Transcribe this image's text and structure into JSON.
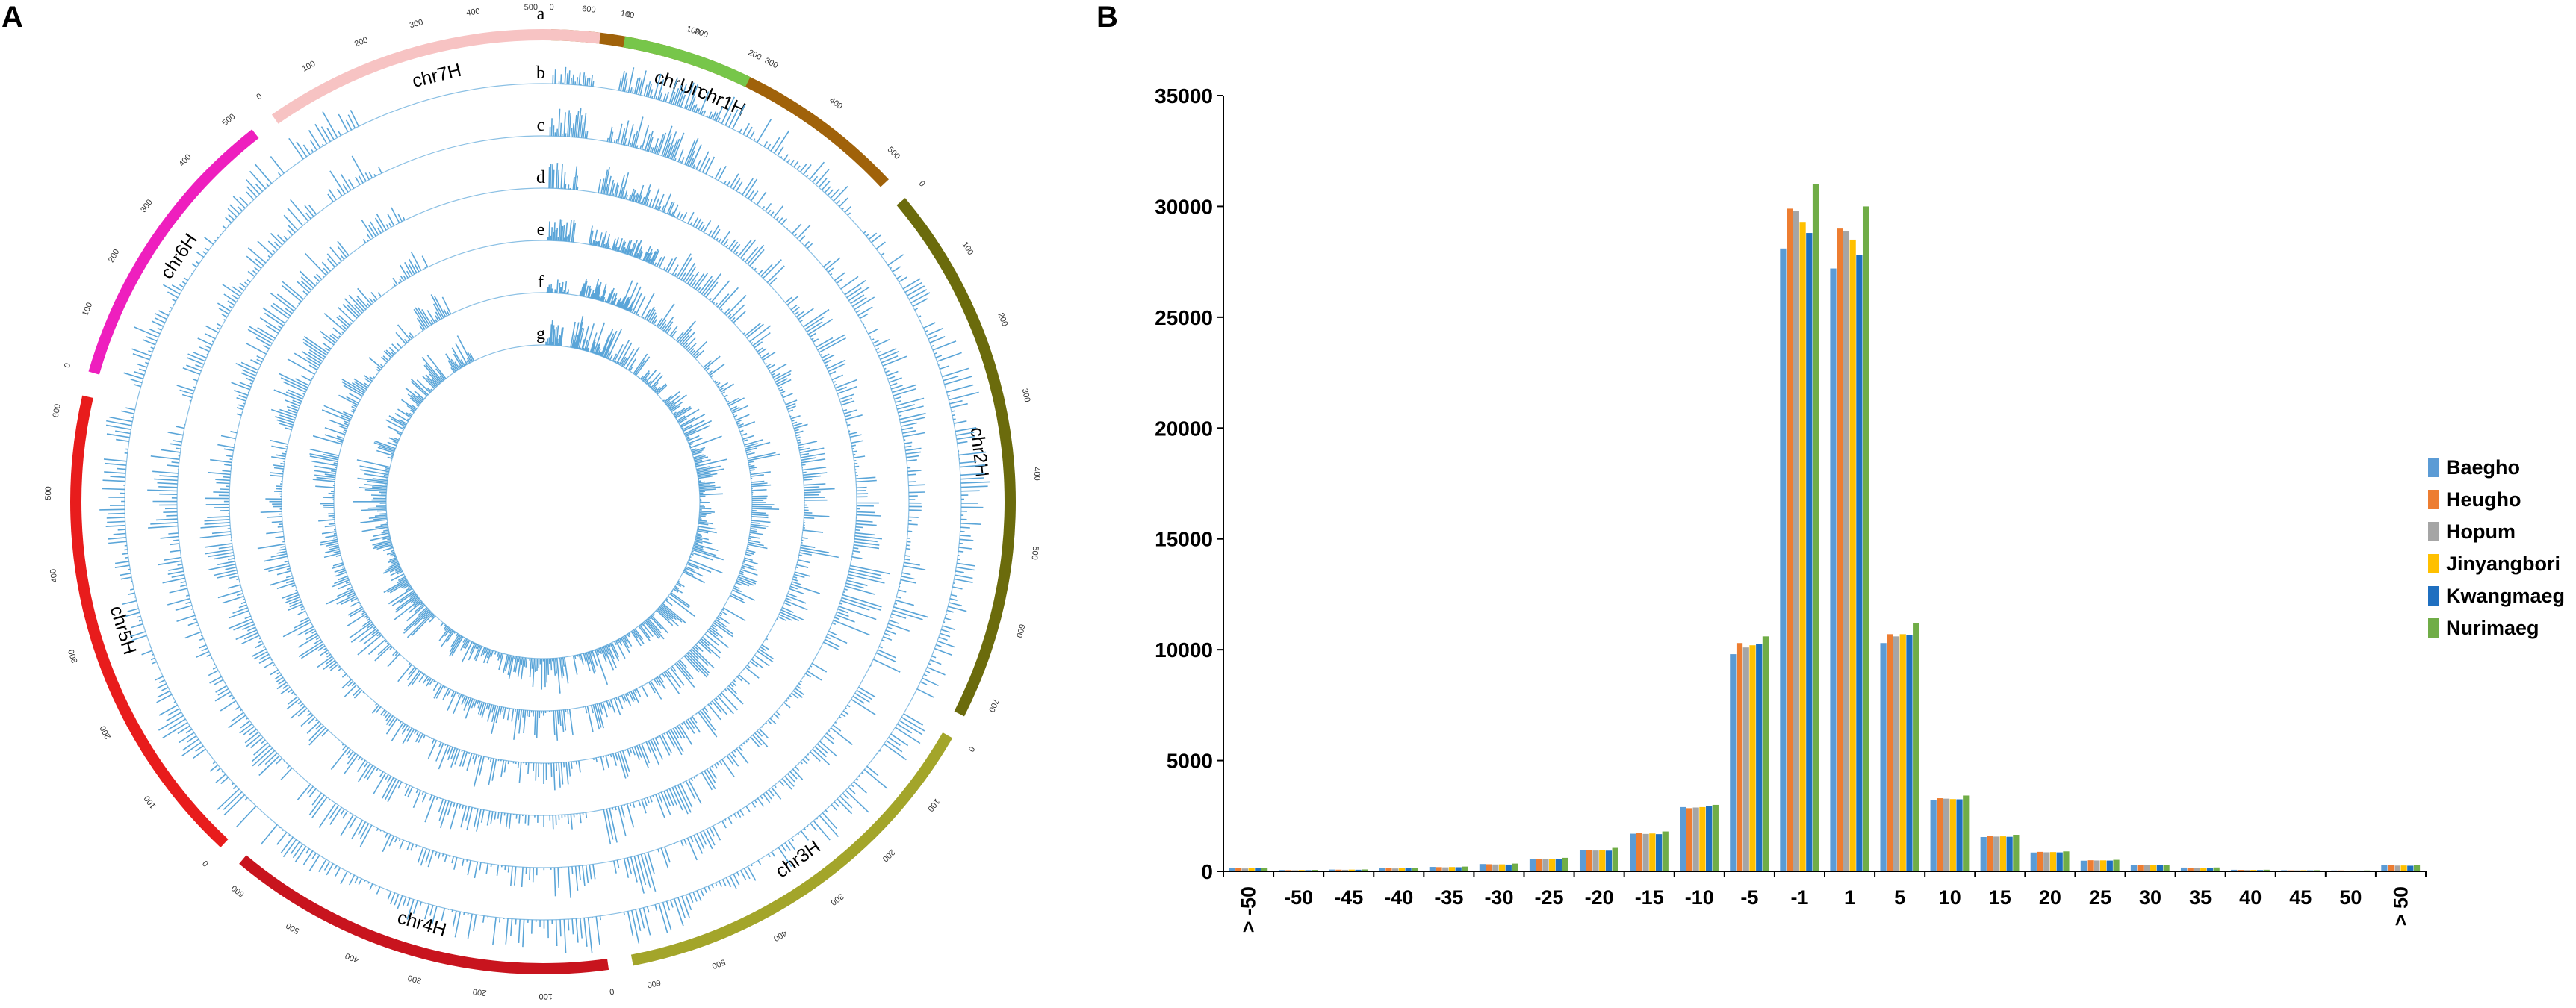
{
  "panels": {
    "a_label": "A",
    "b_label": "B"
  },
  "circos": {
    "chromosomes": [
      {
        "name": "chr1H",
        "color": "#a0620a",
        "start_deg": 1,
        "end_deg": 47,
        "ticks": [
          "0",
          "100",
          "200",
          "300",
          "400",
          "500"
        ]
      },
      {
        "name": "chr2H",
        "color": "#6b6b0c",
        "start_deg": 50,
        "end_deg": 117,
        "ticks": [
          "0",
          "100",
          "200",
          "300",
          "400",
          "500",
          "600",
          "700"
        ]
      },
      {
        "name": "chr3H",
        "color": "#a3a52a",
        "start_deg": 120,
        "end_deg": 169,
        "ticks": [
          "0",
          "100",
          "200",
          "300",
          "400",
          "500",
          "600"
        ]
      },
      {
        "name": "chr4H",
        "color": "#c8141e",
        "start_deg": 172,
        "end_deg": 220,
        "ticks": [
          "0",
          "100",
          "200",
          "300",
          "400",
          "500",
          "600"
        ]
      },
      {
        "name": "chr5H",
        "color": "#e81c1c",
        "start_deg": 223,
        "end_deg": 283,
        "ticks": [
          "0",
          "100",
          "200",
          "300",
          "400",
          "500",
          "600"
        ]
      },
      {
        "name": "chr6H",
        "color": "#ee1fbe",
        "start_deg": 286,
        "end_deg": 322,
        "ticks": [
          "0",
          "100",
          "200",
          "300",
          "400",
          "500"
        ]
      },
      {
        "name": "chr7H",
        "color": "#f7c3c3",
        "start_deg": 325,
        "end_deg": 367,
        "ticks": [
          "0",
          "100",
          "200",
          "300",
          "400",
          "500",
          "600"
        ]
      },
      {
        "name": "chrUn",
        "color": "#77c64a",
        "start_deg": 370,
        "end_deg": 386,
        "ticks": [
          "0",
          "100",
          "200"
        ]
      }
    ],
    "track_labels": [
      "a",
      "b",
      "c",
      "d",
      "e",
      "f",
      "g"
    ],
    "track_color": "#5aa5d8"
  },
  "chart_data": {
    "type": "bar",
    "categories": [
      "> -50",
      "-50",
      "-45",
      "-40",
      "-35",
      "-30",
      "-25",
      "-20",
      "-15",
      "-10",
      "-5",
      "-1",
      "1",
      "5",
      "10",
      "15",
      "20",
      "25",
      "30",
      "35",
      "40",
      "45",
      "50",
      "> 50"
    ],
    "ylim": [
      0,
      35000
    ],
    "yticks": [
      0,
      5000,
      10000,
      15000,
      20000,
      25000,
      30000,
      35000
    ],
    "legend_position": "right",
    "series": [
      {
        "name": "Baegho",
        "color": "#5b9bd5",
        "values": [
          150,
          60,
          80,
          150,
          200,
          330,
          560,
          960,
          1700,
          2900,
          9800,
          28100,
          27200,
          10300,
          3200,
          1550,
          850,
          480,
          280,
          170,
          70,
          50,
          40,
          280
        ]
      },
      {
        "name": "Heugho",
        "color": "#ed7d31",
        "values": [
          140,
          55,
          75,
          140,
          190,
          320,
          570,
          950,
          1720,
          2850,
          10300,
          29900,
          29000,
          10700,
          3300,
          1600,
          880,
          500,
          290,
          160,
          65,
          45,
          40,
          270
        ]
      },
      {
        "name": "Hopum",
        "color": "#a5a5a5",
        "values": [
          130,
          50,
          70,
          130,
          180,
          310,
          550,
          940,
          1690,
          2880,
          10100,
          29800,
          28900,
          10600,
          3280,
          1570,
          860,
          490,
          280,
          160,
          60,
          45,
          35,
          260
        ]
      },
      {
        "name": "Jinyangbori",
        "color": "#ffc000",
        "values": [
          145,
          58,
          78,
          145,
          195,
          315,
          555,
          945,
          1710,
          2900,
          10200,
          29300,
          28500,
          10700,
          3260,
          1580,
          870,
          495,
          285,
          165,
          62,
          48,
          38,
          265
        ]
      },
      {
        "name": "Kwangmaeg",
        "color": "#1f6fc0",
        "values": [
          135,
          52,
          72,
          135,
          185,
          305,
          545,
          935,
          1680,
          2950,
          10250,
          28800,
          27800,
          10650,
          3250,
          1560,
          855,
          485,
          275,
          158,
          58,
          44,
          36,
          255
        ]
      },
      {
        "name": "Nurimaeg",
        "color": "#70ad47",
        "values": [
          160,
          65,
          85,
          160,
          215,
          350,
          610,
          1060,
          1800,
          3000,
          10600,
          31000,
          30000,
          11200,
          3420,
          1650,
          900,
          520,
          300,
          175,
          72,
          52,
          42,
          300
        ]
      }
    ]
  }
}
